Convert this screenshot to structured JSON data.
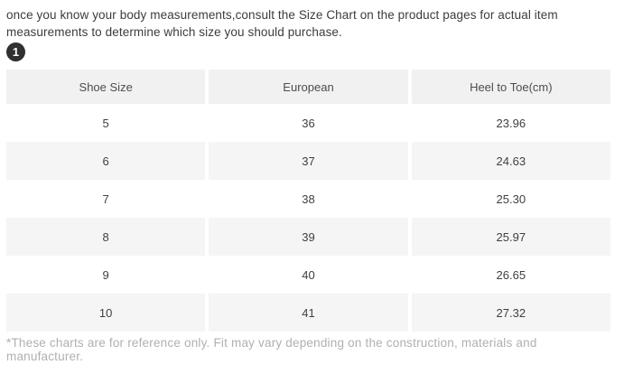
{
  "intro": {
    "text": "once you know your body measurements,consult the Size Chart on the product pages for actual item measurements to determine which size you should purchase.",
    "badge_label": "1"
  },
  "table": {
    "headers": [
      "Shoe Size",
      "European",
      "Heel to Toe(cm)"
    ],
    "rows": [
      [
        "5",
        "36",
        "23.96"
      ],
      [
        "6",
        "37",
        "24.63"
      ],
      [
        "7",
        "38",
        "25.30"
      ],
      [
        "8",
        "39",
        "25.97"
      ],
      [
        "9",
        "40",
        "26.65"
      ],
      [
        "10",
        "41",
        "27.32"
      ]
    ]
  },
  "footnote": "*These charts are for reference only. Fit may vary depending on the construction, materials and manufacturer.",
  "colors": {
    "header_bg": "#f1f1f1",
    "alt_row_bg": "#f5f5f5",
    "body_text": "#3c3c3c",
    "footnote_text": "#b0b0b0",
    "badge_bg": "#303030"
  }
}
